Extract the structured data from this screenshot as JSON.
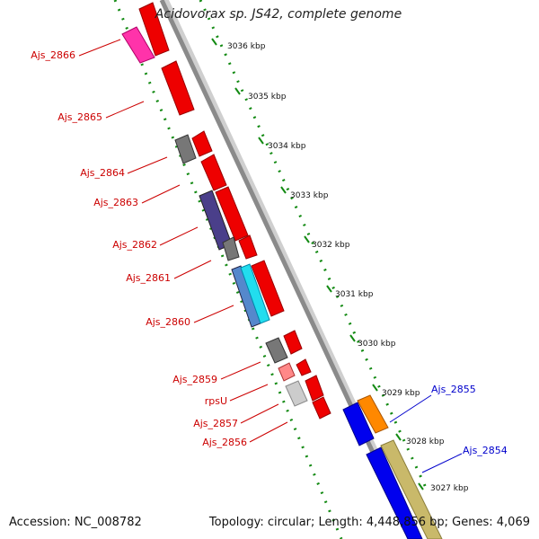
{
  "title": "Acidovorax sp. JS42, complete genome",
  "footer": {
    "accession": "Accession: NC_008782",
    "topology": "Topology: circular; Length: 4,448,856 bp; Genes: 4,069"
  },
  "colors": {
    "background": "#ffffff",
    "backbone": "#8c8c8c",
    "guide_dots": "#138a13",
    "gene_forward": "#ff0000",
    "gene_reverse": "#ff0000",
    "label_left": "#cc0000",
    "label_right": "#0000cc"
  },
  "ruler": [
    {
      "label": "3036 kbp"
    },
    {
      "label": "3035 kbp"
    },
    {
      "label": "3034 kbp"
    },
    {
      "label": "3033 kbp"
    },
    {
      "label": "3032 kbp"
    },
    {
      "label": "3031 kbp"
    },
    {
      "label": "3030 kbp"
    },
    {
      "label": "3029 kbp"
    },
    {
      "label": "3028 kbp"
    },
    {
      "label": "3027 kbp"
    }
  ],
  "gene_labels": [
    {
      "name": "Ajs_2866"
    },
    {
      "name": "Ajs_2865"
    },
    {
      "name": "Ajs_2864"
    },
    {
      "name": "Ajs_2863"
    },
    {
      "name": "Ajs_2862"
    },
    {
      "name": "Ajs_2861"
    },
    {
      "name": "Ajs_2860"
    },
    {
      "name": "Ajs_2859"
    },
    {
      "name": "rpsU"
    },
    {
      "name": "Ajs_2857"
    },
    {
      "name": "Ajs_2856"
    },
    {
      "name": "Ajs_2855"
    },
    {
      "name": "Ajs_2854"
    }
  ]
}
